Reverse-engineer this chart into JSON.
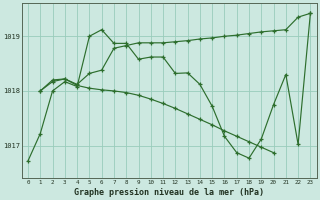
{
  "title": "Graphe pression niveau de la mer (hPa)",
  "background_color": "#cce8e0",
  "grid_color": "#99ccbb",
  "line_color": "#2d6e2d",
  "ylim": [
    1016.4,
    1019.6
  ],
  "yticks": [
    1017,
    1018,
    1019
  ],
  "xlim": [
    -0.5,
    23.5
  ],
  "xticks": [
    0,
    1,
    2,
    3,
    4,
    5,
    6,
    7,
    8,
    9,
    10,
    11,
    12,
    13,
    14,
    15,
    16,
    17,
    18,
    19,
    20,
    21,
    22,
    23
  ],
  "series1": [
    [
      0,
      1016.72
    ],
    [
      1,
      1017.22
    ],
    [
      2,
      1018.0
    ],
    [
      3,
      1018.17
    ],
    [
      4,
      1018.08
    ],
    [
      5,
      1019.0
    ],
    [
      6,
      1019.12
    ],
    [
      7,
      1018.87
    ],
    [
      8,
      1018.87
    ],
    [
      9,
      1018.58
    ],
    [
      10,
      1018.62
    ],
    [
      11,
      1018.62
    ],
    [
      12,
      1018.32
    ],
    [
      13,
      1018.33
    ],
    [
      14,
      1018.12
    ],
    [
      15,
      1017.72
    ],
    [
      16,
      1017.17
    ],
    [
      17,
      1016.87
    ],
    [
      18,
      1016.77
    ],
    [
      19,
      1017.12
    ],
    [
      20,
      1017.75
    ],
    [
      21,
      1018.3
    ],
    [
      22,
      1017.02
    ],
    [
      23,
      1019.42
    ]
  ],
  "series2": [
    [
      1,
      1018.0
    ],
    [
      2,
      1018.17
    ],
    [
      3,
      1018.22
    ],
    [
      4,
      1018.1
    ],
    [
      5,
      1018.05
    ],
    [
      6,
      1018.02
    ],
    [
      7,
      1018.0
    ],
    [
      8,
      1017.97
    ],
    [
      9,
      1017.92
    ],
    [
      10,
      1017.85
    ],
    [
      11,
      1017.77
    ],
    [
      12,
      1017.68
    ],
    [
      13,
      1017.58
    ],
    [
      14,
      1017.48
    ],
    [
      15,
      1017.38
    ],
    [
      16,
      1017.27
    ],
    [
      17,
      1017.17
    ],
    [
      18,
      1017.07
    ],
    [
      19,
      1016.97
    ],
    [
      20,
      1016.87
    ]
  ],
  "series3": [
    [
      1,
      1018.0
    ],
    [
      2,
      1018.2
    ],
    [
      3,
      1018.22
    ],
    [
      4,
      1018.12
    ],
    [
      5,
      1018.32
    ],
    [
      6,
      1018.38
    ],
    [
      7,
      1018.78
    ],
    [
      8,
      1018.83
    ],
    [
      9,
      1018.88
    ],
    [
      10,
      1018.88
    ],
    [
      11,
      1018.88
    ],
    [
      12,
      1018.9
    ],
    [
      13,
      1018.92
    ],
    [
      14,
      1018.95
    ],
    [
      15,
      1018.97
    ],
    [
      16,
      1019.0
    ],
    [
      17,
      1019.02
    ],
    [
      18,
      1019.05
    ],
    [
      19,
      1019.08
    ],
    [
      20,
      1019.1
    ],
    [
      21,
      1019.12
    ],
    [
      22,
      1019.35
    ],
    [
      23,
      1019.42
    ]
  ]
}
